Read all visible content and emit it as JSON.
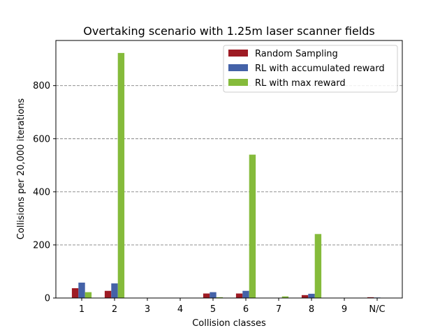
{
  "chart_data": {
    "type": "bar",
    "title": "Overtaking scenario with 1.25m laser scanner fields",
    "xlabel": "Collision classes",
    "ylabel": "Collisions per 20,000 iterations",
    "categories": [
      "1",
      "2",
      "3",
      "4",
      "5",
      "6",
      "7",
      "8",
      "9",
      "N/C"
    ],
    "ylim": [
      0,
      970
    ],
    "yticks": [
      0,
      200,
      400,
      600,
      800
    ],
    "grid": "horizontal dashed",
    "legend_position": "top-right",
    "series": [
      {
        "name": "Random Sampling",
        "color": "#9e1b24",
        "values": [
          37,
          27,
          0,
          0,
          17,
          17,
          0,
          11,
          0,
          3
        ]
      },
      {
        "name": "RL with accumulated reward",
        "color": "#4462a8",
        "values": [
          58,
          55,
          0,
          0,
          22,
          27,
          0,
          16,
          0,
          2
        ]
      },
      {
        "name": "RL with max reward",
        "color": "#85bb3b",
        "values": [
          22,
          923,
          0,
          0,
          3,
          540,
          6,
          241,
          0,
          1
        ]
      }
    ]
  }
}
